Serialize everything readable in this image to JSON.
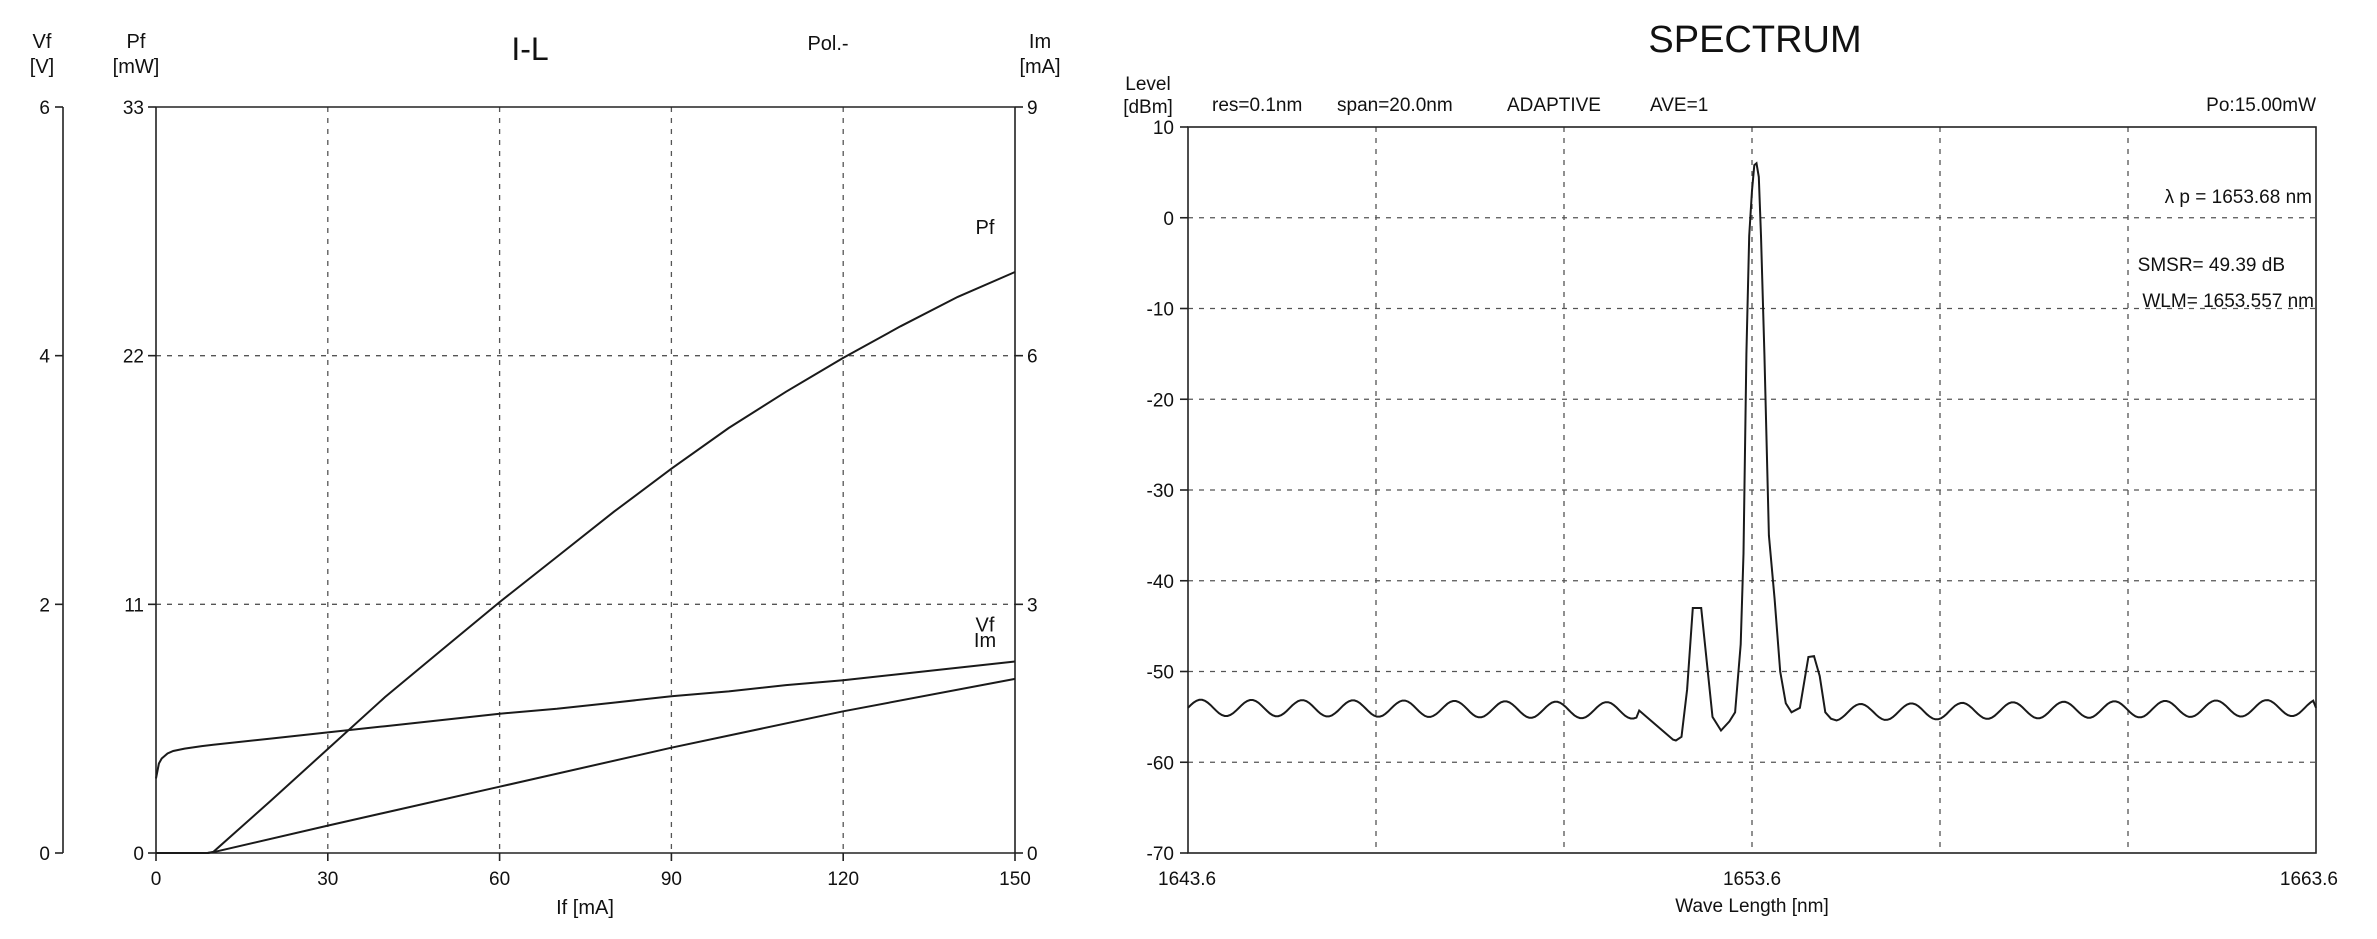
{
  "chart_data": [
    {
      "type": "line",
      "title": "I-L",
      "note": "Pol.-",
      "xlabel": "If [mA]",
      "xlim": [
        0,
        150
      ],
      "xticks": [
        "0",
        "30",
        "60",
        "90",
        "120",
        "150"
      ],
      "axes": {
        "vf": {
          "label": [
            "Vf",
            "[V]"
          ],
          "range": [
            0,
            6
          ],
          "ticks": [
            "0",
            "2",
            "4",
            "6"
          ]
        },
        "pf": {
          "label": [
            "Pf",
            "[mW]"
          ],
          "range": [
            0,
            33
          ],
          "ticks": [
            "0",
            "11",
            "22",
            "33"
          ]
        },
        "im": {
          "label": [
            "Im",
            "[mA]"
          ],
          "range": [
            0,
            9
          ],
          "ticks": [
            "0",
            "3",
            "6",
            "9"
          ]
        }
      },
      "series": [
        {
          "name": "Pf",
          "axis": "pf",
          "x": [
            0,
            9,
            10,
            20,
            30,
            40,
            50,
            60,
            70,
            80,
            90,
            100,
            110,
            120,
            130,
            140,
            150
          ],
          "values": [
            0,
            0,
            0.05,
            2.3,
            4.6,
            6.9,
            9.0,
            11.1,
            13.1,
            15.1,
            17.0,
            18.8,
            20.4,
            21.9,
            23.3,
            24.6,
            25.7
          ]
        },
        {
          "name": "Vf",
          "axis": "vf",
          "x": [
            0,
            0.5,
            1,
            2,
            3,
            5,
            8,
            10,
            20,
            30,
            40,
            50,
            60,
            70,
            80,
            90,
            100,
            110,
            120,
            130,
            140,
            150
          ],
          "values": [
            0.6,
            0.72,
            0.76,
            0.8,
            0.82,
            0.84,
            0.86,
            0.87,
            0.92,
            0.97,
            1.02,
            1.07,
            1.12,
            1.16,
            1.21,
            1.26,
            1.3,
            1.35,
            1.39,
            1.44,
            1.49,
            1.54
          ]
        },
        {
          "name": "Im",
          "axis": "im",
          "x": [
            0,
            9,
            10,
            30,
            60,
            90,
            120,
            150
          ],
          "values": [
            0,
            0,
            0.01,
            0.33,
            0.8,
            1.27,
            1.71,
            2.1
          ]
        }
      ]
    },
    {
      "type": "line",
      "title": "SPECTRUM",
      "ylabel": [
        "Level",
        "[dBm]"
      ],
      "xlabel": "Wave Length [nm]",
      "header": [
        "res=0.1nm",
        "span=20.0nm",
        "ADAPTIVE",
        "AVE=1",
        "Po:15.00mW"
      ],
      "annotations": [
        "λ p = 1653.68 nm",
        "SMSR= 49.39 dB",
        "WLM= 1653.557 nm"
      ],
      "xlim": [
        1643.6,
        1663.6
      ],
      "xticks": [
        "1643.6",
        "1653.6",
        "1663.6"
      ],
      "ylim": [
        -70,
        10
      ],
      "yticks": [
        "10",
        "0",
        "-10",
        "-20",
        "-30",
        "-40",
        "-50",
        "-60",
        "-70"
      ],
      "series": [
        {
          "name": "",
          "x": [
            1643.6,
            1647.6,
            1651.6,
            1652.2,
            1652.25,
            1652.35,
            1652.45,
            1652.55,
            1652.7,
            1652.9,
            1653.05,
            1653.2,
            1653.3,
            1653.4,
            1653.45,
            1653.5,
            1653.55,
            1653.6,
            1653.64,
            1653.68,
            1653.72,
            1653.76,
            1653.82,
            1653.9,
            1654.0,
            1654.1,
            1654.2,
            1654.3,
            1654.45,
            1654.6,
            1654.7,
            1654.8,
            1654.9,
            1655.0,
            1655.1,
            1659.6,
            1663.6
          ],
          "values": [
            -54.0,
            -54.1,
            -54.3,
            -57.5,
            -57.6,
            -57.2,
            -52.0,
            -43.0,
            -43.0,
            -55.0,
            -56.5,
            -55.5,
            -54.5,
            -47.0,
            -37.0,
            -15.0,
            -2.0,
            3.0,
            5.8,
            6.0,
            4.5,
            -2.0,
            -15.0,
            -35.0,
            -42.0,
            -50.0,
            -53.5,
            -54.5,
            -54.0,
            -48.4,
            -48.3,
            -50.5,
            -54.5,
            -55.2,
            -54.5,
            -54.2,
            -54.0
          ]
        }
      ]
    }
  ]
}
